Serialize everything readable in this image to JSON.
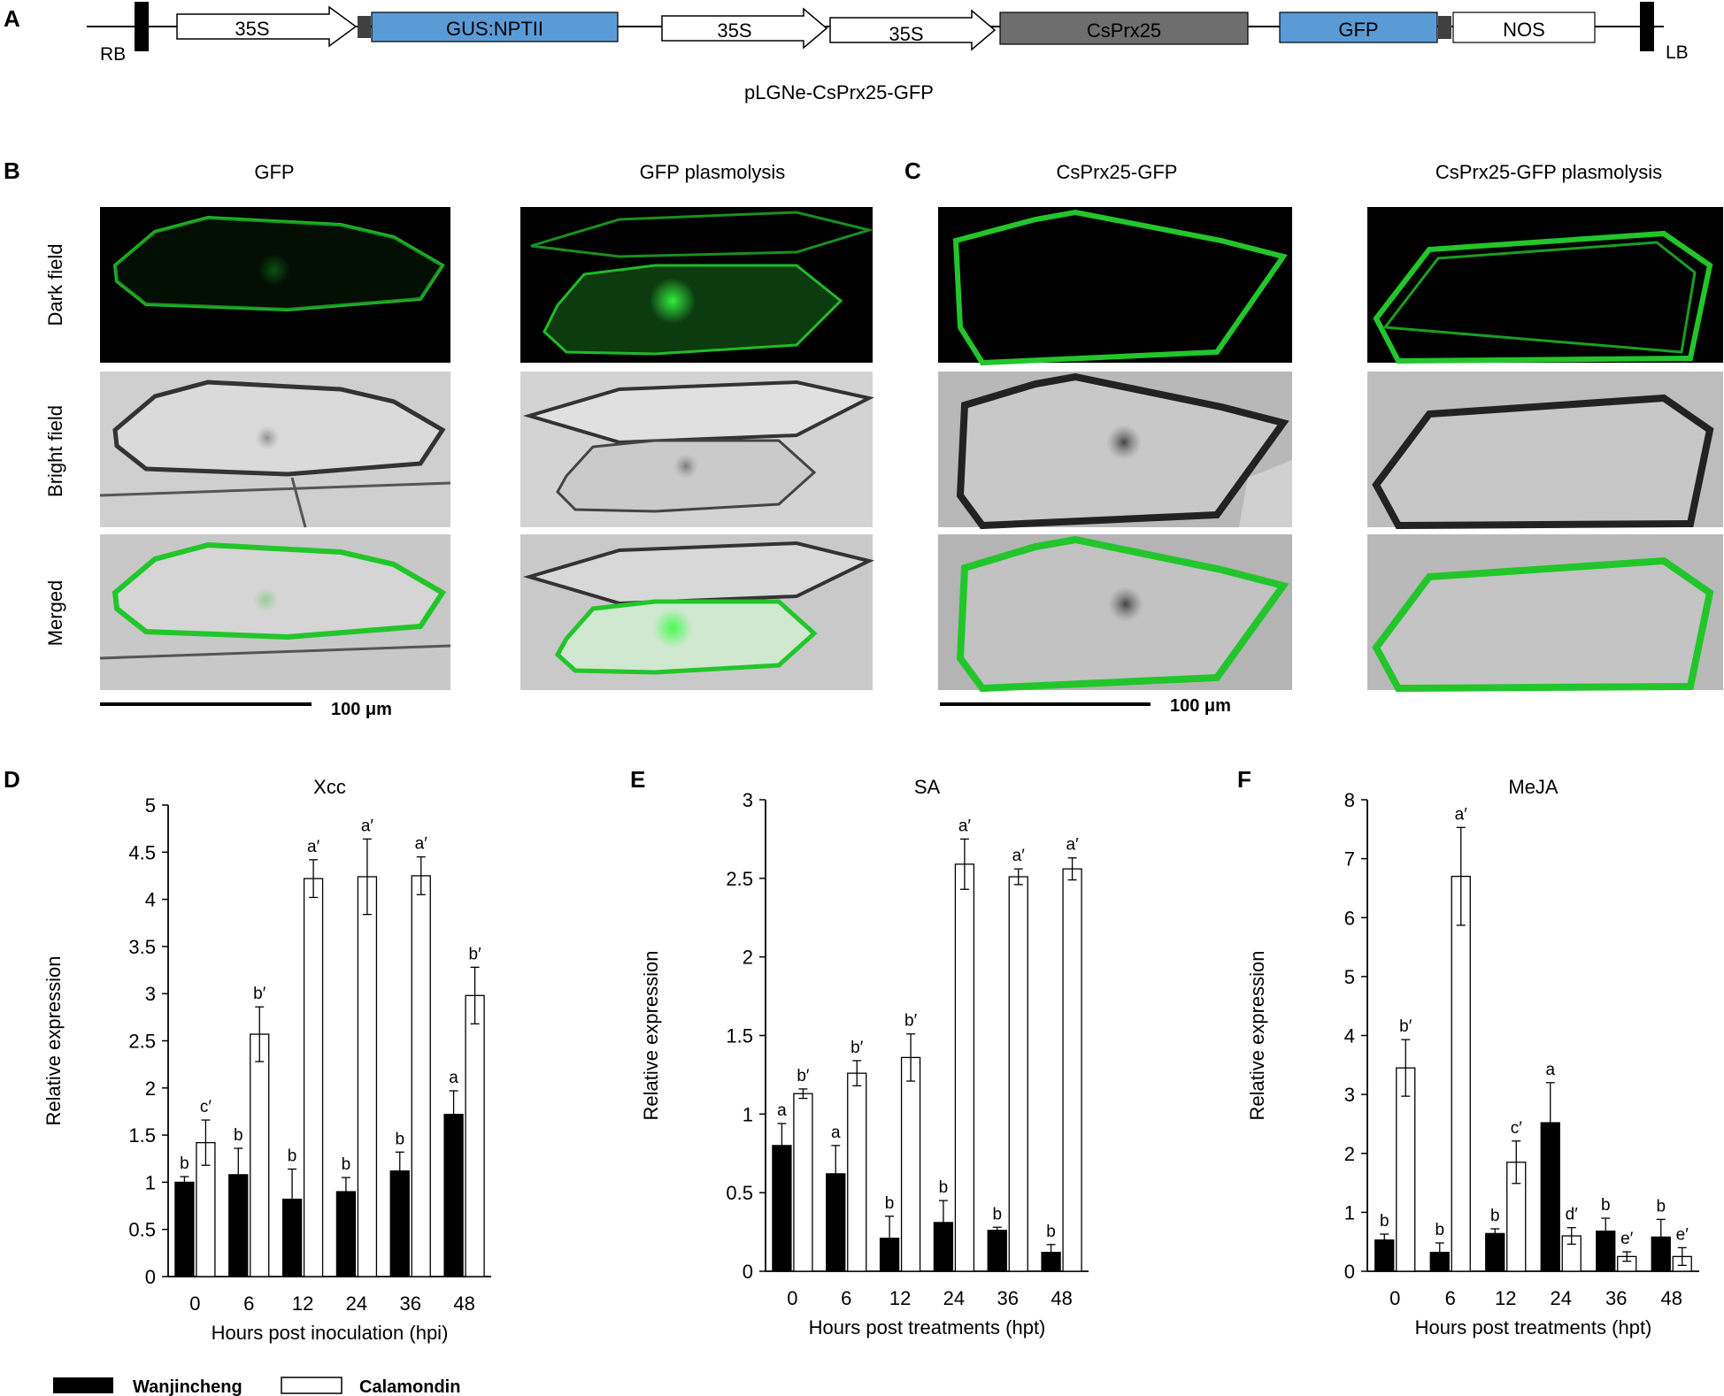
{
  "panel_labels": {
    "a": "A",
    "b": "B",
    "c": "C",
    "d": "D",
    "e": "E",
    "f": "F"
  },
  "construct": {
    "name": "pLGNe-CsPrx25-GFP",
    "rb": "RB",
    "lb": "LB",
    "elements": [
      {
        "label": "35S",
        "kind": "arrow",
        "color": "#ffffff"
      },
      {
        "label": "GUS:NPTII",
        "kind": "box",
        "color": "#5b9bd5"
      },
      {
        "label": "35S",
        "kind": "arrow",
        "color": "#ffffff"
      },
      {
        "label": "35S",
        "kind": "arrow",
        "color": "#ffffff"
      },
      {
        "label": "CsPrx25",
        "kind": "box",
        "color": "#6e6e6e"
      },
      {
        "label": "GFP",
        "kind": "box",
        "color": "#5b9bd5"
      },
      {
        "label": "NOS",
        "kind": "box",
        "color": "#ffffff"
      }
    ]
  },
  "microscopy": {
    "row_labels": [
      "Dark field",
      "Bright field",
      "Merged"
    ],
    "columns": [
      {
        "title": "GFP"
      },
      {
        "title": "GFP plasmolysis"
      },
      {
        "title": "CsPrx25-GFP"
      },
      {
        "title": "CsPrx25-GFP plasmolysis"
      }
    ],
    "scale_bar": "100 μm",
    "colors": {
      "gfp": "#22c62a",
      "dark_bg": "#000000",
      "bright_bg": "#c9c9c9"
    }
  },
  "legend": {
    "wanjincheng": "Wanjincheng",
    "calamondin": "Calamondin"
  },
  "chart_data": [
    {
      "type": "bar",
      "title": "Xcc",
      "xlabel": "Hours post  inoculation (hpi)",
      "ylabel": "Relative expression",
      "ylim": [
        0,
        5
      ],
      "yticks": [
        "0",
        "0.5",
        "1",
        "1.5",
        "2",
        "2.5",
        "3",
        "3.5",
        "4",
        "4.5",
        "5"
      ],
      "categories": [
        "0",
        "6",
        "12",
        "24",
        "36",
        "48"
      ],
      "series": [
        {
          "name": "Wanjincheng",
          "color": "#000000",
          "values": [
            1.0,
            1.08,
            0.82,
            0.9,
            1.12,
            1.72
          ],
          "errors": [
            0.06,
            0.28,
            0.32,
            0.15,
            0.2,
            0.25
          ],
          "letters": [
            "b",
            "b",
            "b",
            "b",
            "b",
            "a"
          ]
        },
        {
          "name": "Calamondin",
          "color": "#ffffff",
          "values": [
            1.42,
            2.57,
            4.22,
            4.24,
            4.25,
            2.98
          ],
          "errors": [
            0.24,
            0.29,
            0.2,
            0.4,
            0.2,
            0.3
          ],
          "letters": [
            "c′",
            "b′",
            "a′",
            "a′",
            "a′",
            "b′"
          ]
        }
      ]
    },
    {
      "type": "bar",
      "title": "SA",
      "xlabel": "Hours post treatments (hpt)",
      "ylabel": "Relative expression",
      "ylim": [
        0,
        3
      ],
      "yticks": [
        "0",
        "0.5",
        "1",
        "1.5",
        "2",
        "2.5",
        "3"
      ],
      "categories": [
        "0",
        "6",
        "12",
        "24",
        "36",
        "48"
      ],
      "series": [
        {
          "name": "Wanjincheng",
          "color": "#000000",
          "values": [
            0.8,
            0.62,
            0.21,
            0.31,
            0.26,
            0.12
          ],
          "errors": [
            0.14,
            0.18,
            0.14,
            0.14,
            0.02,
            0.05
          ],
          "letters": [
            "a",
            "a",
            "b",
            "b",
            "b",
            "b"
          ]
        },
        {
          "name": "Calamondin",
          "color": "#ffffff",
          "values": [
            1.13,
            1.26,
            1.36,
            2.59,
            2.51,
            2.56
          ],
          "errors": [
            0.03,
            0.08,
            0.15,
            0.16,
            0.05,
            0.07
          ],
          "letters": [
            "b′",
            "b′",
            "b′",
            "a′",
            "a′",
            "a′"
          ]
        }
      ]
    },
    {
      "type": "bar",
      "title": "MeJA",
      "xlabel": "Hours post treatments (hpt)",
      "ylabel": "Relative expression",
      "ylim": [
        0,
        8
      ],
      "yticks": [
        "0",
        "1",
        "2",
        "3",
        "4",
        "5",
        "6",
        "7",
        "8"
      ],
      "categories": [
        "0",
        "6",
        "12",
        "24",
        "36",
        "48"
      ],
      "series": [
        {
          "name": "Wanjincheng",
          "color": "#000000",
          "values": [
            0.53,
            0.32,
            0.64,
            2.52,
            0.68,
            0.58
          ],
          "errors": [
            0.1,
            0.16,
            0.08,
            0.68,
            0.22,
            0.3
          ],
          "letters": [
            "b",
            "b",
            "b",
            "a",
            "b",
            "b"
          ]
        },
        {
          "name": "Calamondin",
          "color": "#ffffff",
          "values": [
            3.45,
            6.7,
            1.85,
            0.6,
            0.25,
            0.25
          ],
          "errors": [
            0.48,
            0.83,
            0.36,
            0.14,
            0.08,
            0.15
          ],
          "letters": [
            "b′",
            "a′",
            "c′",
            "d′",
            "e′",
            "e′"
          ]
        }
      ]
    }
  ]
}
